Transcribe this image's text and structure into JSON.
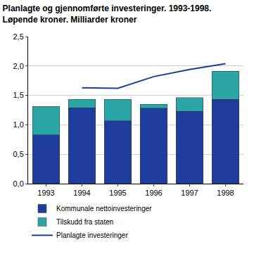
{
  "chart_data": {
    "type": "bar",
    "title": "Planlagte og gjennomførte investeringer. 1993-1998.",
    "subtitle": "Løpende kroner. Milliarder kroner",
    "categories": [
      "1993",
      "1994",
      "1995",
      "1996",
      "1997",
      "1998"
    ],
    "stacked": true,
    "series": [
      {
        "name": "Kommunale nettoinvesteringer",
        "type": "bar",
        "color": "#1f3d9c",
        "values": [
          0.83,
          1.29,
          1.07,
          1.28,
          1.23,
          1.43
        ]
      },
      {
        "name": "Tilskudd fra staten",
        "type": "bar",
        "color": "#2ba6a6",
        "values": [
          0.48,
          0.14,
          0.36,
          0.07,
          0.23,
          0.48
        ]
      },
      {
        "name": "Planlagte investeringer",
        "type": "line",
        "color": "#1f3d9c",
        "values": [
          null,
          1.63,
          1.62,
          1.82,
          1.94,
          2.04
        ]
      }
    ],
    "ylim": [
      0,
      2.5
    ],
    "yticks": [
      {
        "value": 0,
        "label": "0,0"
      },
      {
        "value": 0.5,
        "label": "0,5"
      },
      {
        "value": 1,
        "label": "1,0"
      },
      {
        "value": 1.5,
        "label": "1,5"
      },
      {
        "value": 2,
        "label": "2,0"
      },
      {
        "value": 2.5,
        "label": "2,5"
      }
    ],
    "grid": true,
    "legend": "bottom"
  }
}
